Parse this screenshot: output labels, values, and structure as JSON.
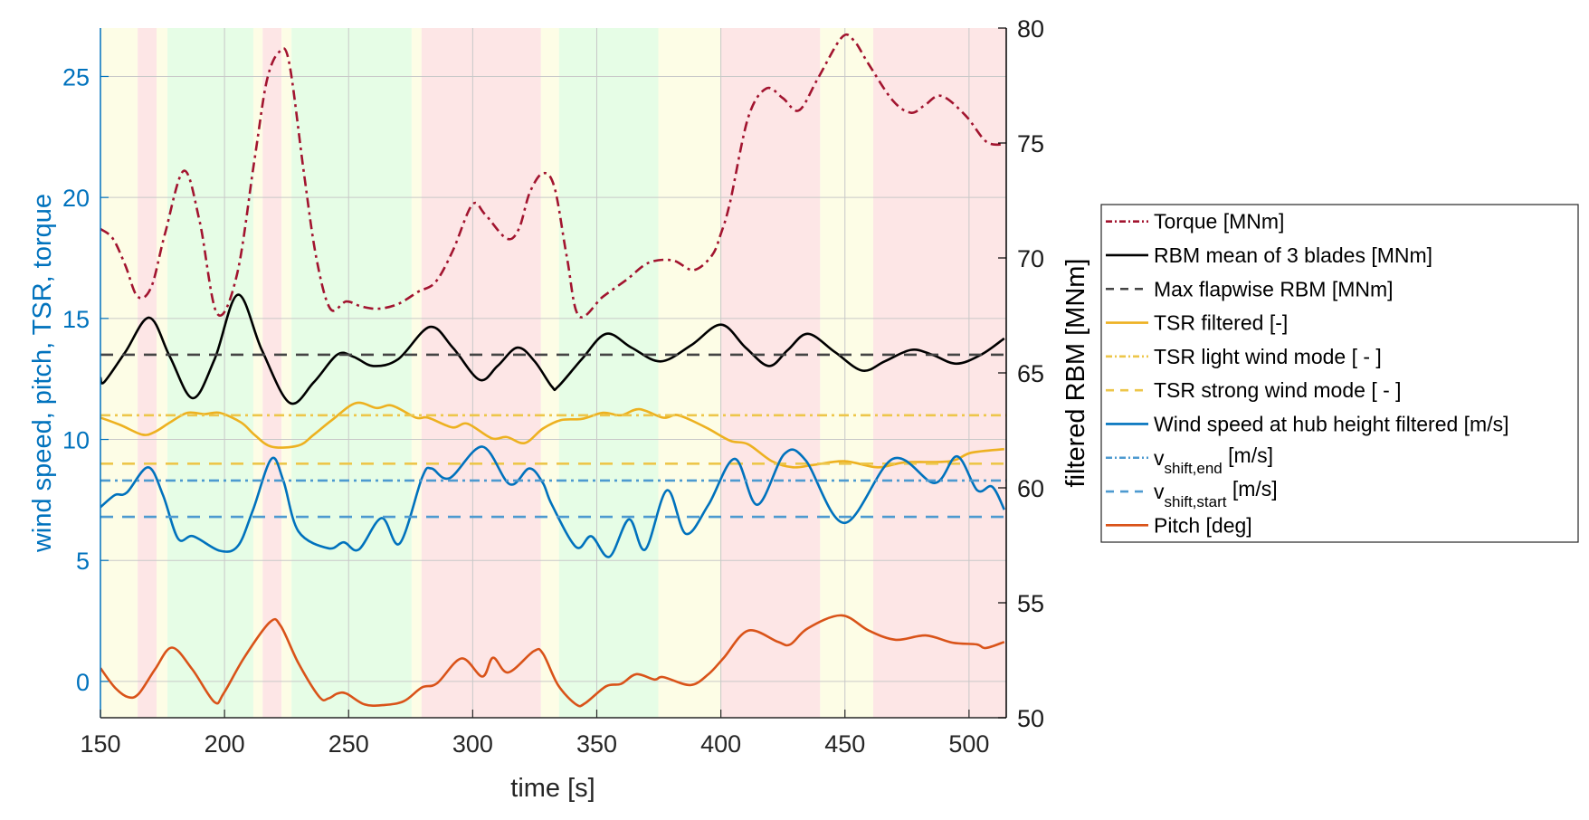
{
  "chart_data": {
    "type": "line",
    "title": "",
    "xlabel": "time [s]",
    "ylabel_left": "wind speed, pitch, TSR, torque",
    "ylabel_right": "filtered RBM [MNm]",
    "xlim": [
      150,
      515
    ],
    "ylim_left": [
      -1.5,
      27
    ],
    "ylim_right": [
      50,
      80
    ],
    "x_ticks": [
      150,
      200,
      250,
      300,
      350,
      400,
      450,
      500
    ],
    "y_ticks_left": [
      0,
      5,
      10,
      15,
      20,
      25
    ],
    "y_ticks_right": [
      50,
      55,
      60,
      65,
      70,
      75,
      80
    ],
    "grid": true,
    "legend_position": "outside-right",
    "regions": [
      {
        "start": 150,
        "end": 165,
        "state": "yellow"
      },
      {
        "start": 165,
        "end": 172.6,
        "state": "red"
      },
      {
        "start": 172.6,
        "end": 177,
        "state": "yellow"
      },
      {
        "start": 177,
        "end": 211.6,
        "state": "green"
      },
      {
        "start": 211.6,
        "end": 215.4,
        "state": "yellow"
      },
      {
        "start": 215.4,
        "end": 223,
        "state": "red"
      },
      {
        "start": 223,
        "end": 227,
        "state": "yellow"
      },
      {
        "start": 227,
        "end": 275.4,
        "state": "green"
      },
      {
        "start": 275.4,
        "end": 279.4,
        "state": "yellow"
      },
      {
        "start": 279.4,
        "end": 327.5,
        "state": "red"
      },
      {
        "start": 327.5,
        "end": 334.8,
        "state": "yellow"
      },
      {
        "start": 334.8,
        "end": 374.8,
        "state": "green"
      },
      {
        "start": 374.8,
        "end": 400.1,
        "state": "yellow"
      },
      {
        "start": 400.1,
        "end": 440,
        "state": "red"
      },
      {
        "start": 440,
        "end": 461.4,
        "state": "yellow"
      },
      {
        "start": 461.4,
        "end": 515,
        "state": "red"
      }
    ],
    "region_colors": {
      "yellow": "#fdfde6",
      "red": "#fde6e6",
      "green": "#e6fde6"
    },
    "series": [
      {
        "name": "Torque [MNm]",
        "axis": "left",
        "color": "#A2142F",
        "style": "dashdot",
        "x": [
          150,
          155,
          160,
          165,
          170.5,
          176,
          183.6,
          190,
          197,
          205,
          212,
          217,
          221.9,
          226,
          232,
          237,
          242.6,
          249,
          255,
          262,
          270,
          278,
          285,
          292,
          299.8,
          305,
          313.7,
          318.6,
          323,
          328.3,
          333,
          338,
          342.8,
          352.5,
          362,
          370.9,
          380.6,
          389,
          396.4,
          400,
          403.7,
          411,
          418.3,
          425,
          431.5,
          439,
          448.6,
          453.5,
          459.6,
          469.3,
          476.6,
          482,
          488.8,
          498.5,
          507,
          514.2
        ],
        "values": [
          18.7,
          18.3,
          17.2,
          15.9,
          16.3,
          18.5,
          21.1,
          19.0,
          15.2,
          16.8,
          21.5,
          24.8,
          26.0,
          25.6,
          21.0,
          17.5,
          15.4,
          15.7,
          15.5,
          15.4,
          15.6,
          16.1,
          16.5,
          17.8,
          19.7,
          19.3,
          18.3,
          18.7,
          20.2,
          21.0,
          20.4,
          17.5,
          15.1,
          15.9,
          16.6,
          17.3,
          17.4,
          17.0,
          17.6,
          18.5,
          19.8,
          23.3,
          24.5,
          24.1,
          23.6,
          24.9,
          26.6,
          26.5,
          25.5,
          24.0,
          23.5,
          23.8,
          24.2,
          23.4,
          22.3,
          22.2
        ]
      },
      {
        "name": "RBM mean of 3 blades [MNm]",
        "axis": "right",
        "color": "#000000",
        "style": "solid",
        "x": [
          150,
          151.5,
          160,
          169.7,
          178,
          187.2,
          196,
          205.4,
          215,
          226.2,
          236,
          245.5,
          252,
          260,
          270,
          282.7,
          292,
          302.7,
          310,
          318,
          325,
          331.9,
          334.4,
          344,
          353.8,
          364,
          375.7,
          388,
          400.1,
          410,
          419.4,
          427,
          435.1,
          446,
          457,
          466,
          476.6,
          485,
          494.9,
          505,
          514.2
        ],
        "values": [
          64.8,
          64.6,
          65.9,
          67.4,
          65.7,
          63.9,
          65.6,
          68.4,
          66.0,
          63.7,
          64.6,
          65.8,
          65.7,
          65.3,
          65.6,
          67.0,
          66.1,
          64.7,
          65.3,
          66.1,
          65.5,
          64.4,
          64.4,
          65.6,
          66.7,
          66.1,
          65.5,
          66.2,
          67.1,
          66.1,
          65.3,
          66.0,
          66.7,
          65.9,
          65.1,
          65.5,
          66.0,
          65.8,
          65.4,
          65.8,
          66.5
        ]
      },
      {
        "name": "Max flapwise RBM [MNm]",
        "axis": "left",
        "color": "#444444",
        "style": "dashed",
        "x": [
          150,
          515
        ],
        "values": [
          13.5,
          13.5
        ]
      },
      {
        "name": "TSR filtered [-]",
        "axis": "left",
        "color": "#EDB120",
        "style": "solid",
        "x": [
          150,
          158,
          166.8,
          171.7,
          178,
          185,
          192,
          198.1,
          206.7,
          212,
          218.9,
          229.8,
          236,
          243.3,
          252.9,
          261.4,
          267.5,
          277.2,
          282,
          291.8,
          297.9,
          307.6,
          313.7,
          321,
          328.3,
          335.6,
          344,
          352.5,
          359.8,
          367.1,
          376.8,
          382.9,
          393.9,
          403.7,
          411,
          420.6,
          429.1,
          437.6,
          449.8,
          463.2,
          474.1,
          492.3,
          500.9,
          514.2
        ],
        "values": [
          10.9,
          10.6,
          10.2,
          10.3,
          10.7,
          11.1,
          11.05,
          11.1,
          10.7,
          10.2,
          9.7,
          9.75,
          10.2,
          10.8,
          11.5,
          11.3,
          11.4,
          10.9,
          10.9,
          10.5,
          10.65,
          10.05,
          10.1,
          9.85,
          10.45,
          10.8,
          10.85,
          11.1,
          11.0,
          11.25,
          10.9,
          11.0,
          10.5,
          9.95,
          9.8,
          9.1,
          8.85,
          8.95,
          9.1,
          8.85,
          9.05,
          9.1,
          9.45,
          9.6
        ]
      },
      {
        "name": "TSR light wind mode [ - ]",
        "axis": "left",
        "color": "#EDC64A",
        "style": "dashdot",
        "x": [
          150,
          515
        ],
        "values": [
          11.0,
          11.0
        ]
      },
      {
        "name": "TSR strong wind mode [ - ]",
        "axis": "left",
        "color": "#EDC64A",
        "style": "dashed",
        "x": [
          150,
          515
        ],
        "values": [
          9.0,
          9.0
        ]
      },
      {
        "name": "Wind speed at hub height filtered [m/s]",
        "axis": "left",
        "color": "#0072BD",
        "style": "solid",
        "x": [
          150,
          155.8,
          160.6,
          169.2,
          175.2,
          181.3,
          187.4,
          198.1,
          205.4,
          211.5,
          218.9,
          223.7,
          229.8,
          241.9,
          248,
          254.1,
          263.3,
          270.6,
          279.7,
          283.4,
          290.7,
          303.9,
          314.9,
          322.8,
          328.3,
          331.9,
          341.7,
          347.8,
          355.1,
          363,
          369.5,
          378.3,
          385.9,
          395,
          405.6,
          414.7,
          425.6,
          434.1,
          449.8,
          469.3,
          486.1,
          495.2,
          503.3,
          509.3,
          514.2
        ],
        "values": [
          7.2,
          7.7,
          7.8,
          8.85,
          7.7,
          5.9,
          6.0,
          5.4,
          5.6,
          7.1,
          9.2,
          8.3,
          6.2,
          5.5,
          5.75,
          5.45,
          6.75,
          5.7,
          8.45,
          8.8,
          8.4,
          9.7,
          8.15,
          8.8,
          8.2,
          7.3,
          5.55,
          6.0,
          5.15,
          6.7,
          5.45,
          7.9,
          6.1,
          7.3,
          9.2,
          7.3,
          9.4,
          9.15,
          6.55,
          9.2,
          8.2,
          9.3,
          7.9,
          8.05,
          7.1
        ]
      },
      {
        "name": "v_shift,end [m/s]",
        "axis": "left",
        "color": "#4D9AD0",
        "style": "dashdot",
        "x": [
          150,
          515
        ],
        "values": [
          8.3,
          8.3
        ]
      },
      {
        "name": "v_shift,start [m/s]",
        "axis": "left",
        "color": "#4D9AD0",
        "style": "dashed",
        "x": [
          150,
          515
        ],
        "values": [
          6.8,
          6.8
        ]
      },
      {
        "name": "Pitch [deg]",
        "axis": "left",
        "color": "#D95319",
        "style": "solid",
        "x": [
          150,
          155.8,
          161.2,
          165.5,
          172,
          178.8,
          187,
          195.9,
          199.6,
          208,
          218.3,
          222.6,
          229.8,
          238.3,
          241.9,
          245.5,
          249.1,
          256.4,
          263.7,
          272.2,
          279.5,
          285.6,
          295.5,
          303.9,
          308.2,
          314.3,
          324.6,
          328.3,
          334.4,
          341.7,
          345.3,
          353.8,
          359.8,
          365.9,
          373.2,
          376.8,
          387.7,
          395,
          401.2,
          411,
          423.1,
          428,
          435.1,
          448.6,
          459.6,
          470.5,
          482.5,
          493.4,
          503.1,
          506.7,
          514.2
        ],
        "values": [
          0.55,
          -0.25,
          -0.65,
          -0.5,
          0.5,
          1.4,
          0.5,
          -0.85,
          -0.5,
          1.0,
          2.45,
          2.3,
          0.75,
          -0.65,
          -0.7,
          -0.5,
          -0.5,
          -0.95,
          -0.98,
          -0.82,
          -0.25,
          -0.08,
          0.95,
          0.2,
          0.98,
          0.37,
          1.25,
          1.15,
          -0.15,
          -0.95,
          -0.9,
          -0.2,
          -0.1,
          0.3,
          0.08,
          0.18,
          -0.15,
          0.3,
          0.98,
          2.1,
          1.63,
          1.53,
          2.2,
          2.73,
          2.1,
          1.72,
          1.9,
          1.6,
          1.53,
          1.38,
          1.63
        ]
      }
    ],
    "legend": [
      {
        "label": "Torque [MNm]",
        "main": "Torque [MNm]",
        "sub": "",
        "tail": ""
      },
      {
        "label": "RBM mean of 3 blades [MNm]",
        "main": "RBM mean of 3 blades [MNm]",
        "sub": "",
        "tail": ""
      },
      {
        "label": "Max flapwise RBM [MNm]",
        "main": "Max flapwise RBM [MNm]",
        "sub": "",
        "tail": ""
      },
      {
        "label": "TSR filtered [-]",
        "main": "TSR filtered [-]",
        "sub": "",
        "tail": ""
      },
      {
        "label": "TSR light wind mode [ - ]",
        "main": "TSR light wind mode [ - ]",
        "sub": "",
        "tail": ""
      },
      {
        "label": "TSR strong wind mode [ - ]",
        "main": "TSR strong wind mode [ - ]",
        "sub": "",
        "tail": ""
      },
      {
        "label": "Wind speed at hub height filtered [m/s]",
        "main": "Wind speed at hub height filtered [m/s]",
        "sub": "",
        "tail": ""
      },
      {
        "label": "v shift,end [m/s]",
        "main": "v",
        "sub": "shift,end",
        "tail": " [m/s]"
      },
      {
        "label": "v shift,start [m/s]",
        "main": "v",
        "sub": "shift,start",
        "tail": " [m/s]"
      },
      {
        "label": "Pitch [deg]",
        "main": "Pitch [deg]",
        "sub": "",
        "tail": ""
      }
    ]
  }
}
